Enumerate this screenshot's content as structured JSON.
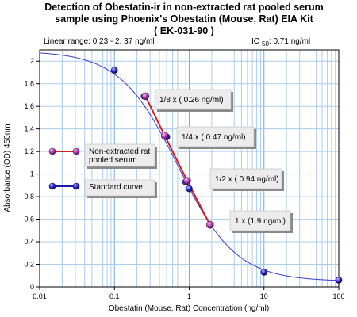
{
  "chart_data": {
    "type": "line",
    "title_lines": [
      "Detection of Obestatin-ir in non-extracted rat pooled serum",
      "sample using Phoenix's Obestatin (Mouse, Rat) EIA Kit",
      "( EK-031-90 )"
    ],
    "linear_range": "Linear range: 0.23 - 2. 37 ng/ml",
    "ic50": {
      "prefix": "IC",
      "sub": "50",
      "suffix": ": 0.71 ng/ml"
    },
    "xlabel": "Obestatin (Mouse, Rat) Concentration (ng/ml)",
    "ylabel": "Absorbance (OD) 450nm",
    "x_scale": "log",
    "xlim": [
      0.01,
      100
    ],
    "ylim": [
      0,
      2.1
    ],
    "x_ticks": [
      {
        "value": 0.01,
        "label": "0.01"
      },
      {
        "value": 0.1,
        "label": "0.1"
      },
      {
        "value": 1,
        "label": "1"
      },
      {
        "value": 10,
        "label": "10"
      },
      {
        "value": 100,
        "label": "100"
      }
    ],
    "y_ticks": [
      {
        "value": 0,
        "label": "0"
      },
      {
        "value": 0.2,
        "label": "0.2"
      },
      {
        "value": 0.4,
        "label": "0.4"
      },
      {
        "value": 0.6,
        "label": "0.6"
      },
      {
        "value": 0.8,
        "label": "0.8"
      },
      {
        "value": 1,
        "label": "1"
      },
      {
        "value": 1.2,
        "label": "1.2"
      },
      {
        "value": 1.4,
        "label": "1.4"
      },
      {
        "value": 1.6,
        "label": "1.6"
      },
      {
        "value": 1.8,
        "label": "1.8"
      },
      {
        "value": 2,
        "label": "2"
      }
    ],
    "grid": true,
    "standard_fit": {
      "top": 2.09,
      "bottom": 0.05,
      "ec50": 0.71,
      "hill": 1.12
    },
    "series": [
      {
        "name": "Standard curve",
        "color": "#1a1aaa",
        "points": [
          {
            "x": 0.1,
            "y": 1.92
          },
          {
            "x": 0.25,
            "y": 1.69
          },
          {
            "x": 0.5,
            "y": 1.33
          },
          {
            "x": 0.9,
            "y": 0.93
          },
          {
            "x": 1.0,
            "y": 0.87
          },
          {
            "x": 10,
            "y": 0.13
          },
          {
            "x": 100,
            "y": 0.06
          }
        ]
      },
      {
        "name": "Non-extracted rat pooled serum",
        "color": "#cc2020",
        "marker_color": "#b040b0",
        "points": [
          {
            "x": 0.26,
            "y": 1.69
          },
          {
            "x": 0.47,
            "y": 1.34
          },
          {
            "x": 0.94,
            "y": 0.94
          },
          {
            "x": 1.9,
            "y": 0.55
          }
        ]
      }
    ],
    "legend_placement": "left",
    "legend": [
      {
        "lines": [
          "Non-extracted rat",
          "pooled serum"
        ],
        "series": 1
      },
      {
        "lines": [
          "Standard curve"
        ],
        "series": 0
      }
    ],
    "annotations": [
      {
        "label": "1/8 x ( 0.26 ng/ml)",
        "point": 0
      },
      {
        "label": "1/4 x ( 0.47 ng/ml)",
        "point": 1
      },
      {
        "label": "1/2 x ( 0.94 ng/ml)",
        "point": 2
      },
      {
        "label": "1 x (1.9 ng/ml)",
        "point": 3
      }
    ]
  }
}
